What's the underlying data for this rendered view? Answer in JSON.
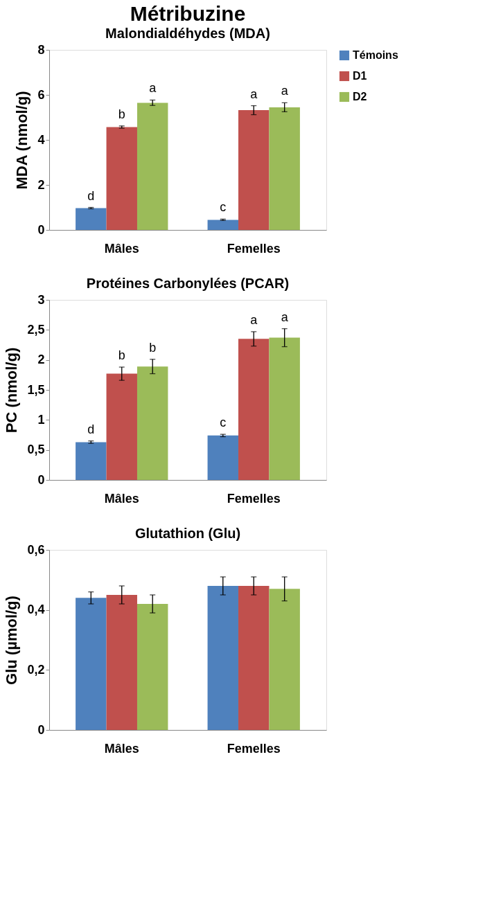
{
  "chart_data": [
    {
      "type": "bar",
      "title": "Métribuzine",
      "subtitle": "Malondialdéhydes (MDA)",
      "ylabel": "MDA (nmol/g)",
      "categories": [
        "Mâles",
        "Femelles"
      ],
      "ylim": [
        0,
        8
      ],
      "yticks": [
        0,
        2,
        4,
        6,
        8
      ],
      "legend": "right",
      "series": [
        {
          "name": "Témoins",
          "color": "#4f81bd",
          "values": [
            0.97,
            0.45
          ],
          "errors": [
            0.03,
            0.03
          ],
          "value_labels": [
            "d",
            "c"
          ]
        },
        {
          "name": "D1",
          "color": "#c0504d",
          "values": [
            4.57,
            5.32
          ],
          "errors": [
            0.05,
            0.2
          ],
          "value_labels": [
            "b",
            "a"
          ]
        },
        {
          "name": "D2",
          "color": "#9bbb59",
          "values": [
            5.65,
            5.45
          ],
          "errors": [
            0.12,
            0.2
          ],
          "value_labels": [
            "a",
            "a"
          ]
        }
      ]
    },
    {
      "type": "bar",
      "title": "Protéines Carbonylées (PCAR)",
      "ylabel": "PC (nmol/g)",
      "categories": [
        "Mâles",
        "Femelles"
      ],
      "ylim": [
        0,
        3
      ],
      "yticks": [
        0,
        {
          "value": 0.5,
          "label": "0,5"
        },
        1,
        {
          "value": 1.5,
          "label": "1,5"
        },
        2,
        {
          "value": 2.5,
          "label": "2,5"
        },
        3
      ],
      "series": [
        {
          "color": "#4f81bd",
          "values": [
            0.63,
            0.74
          ],
          "errors": [
            0.02,
            0.02
          ],
          "value_labels": [
            "d",
            "c"
          ]
        },
        {
          "color": "#c0504d",
          "values": [
            1.77,
            2.35
          ],
          "errors": [
            0.11,
            0.12
          ],
          "value_labels": [
            "b",
            "a"
          ]
        },
        {
          "color": "#9bbb59",
          "values": [
            1.89,
            2.37
          ],
          "errors": [
            0.12,
            0.15
          ],
          "value_labels": [
            "b",
            "a"
          ]
        }
      ]
    },
    {
      "type": "bar",
      "title": "Glutathion (Glu)",
      "ylabel": "Glu (µmol/g)",
      "categories": [
        "Mâles",
        "Femelles"
      ],
      "ylim": [
        0,
        0.6
      ],
      "yticks": [
        0,
        {
          "value": 0.2,
          "label": "0,2"
        },
        {
          "value": 0.4,
          "label": "0,4"
        },
        {
          "value": 0.6,
          "label": "0,6"
        }
      ],
      "series": [
        {
          "color": "#4f81bd",
          "values": [
            0.44,
            0.48
          ],
          "errors": [
            0.02,
            0.03
          ]
        },
        {
          "color": "#c0504d",
          "values": [
            0.45,
            0.48
          ],
          "errors": [
            0.03,
            0.03
          ]
        },
        {
          "color": "#9bbb59",
          "values": [
            0.42,
            0.47
          ],
          "errors": [
            0.03,
            0.04
          ]
        }
      ]
    }
  ]
}
